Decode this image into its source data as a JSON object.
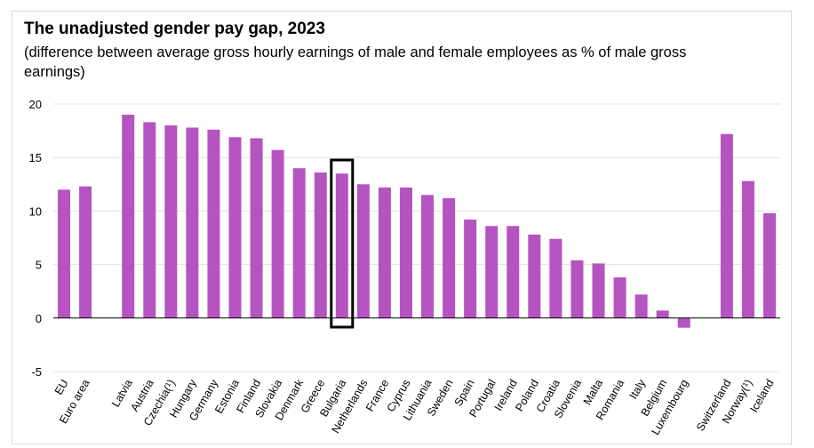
{
  "title": "The unadjusted gender pay gap, 2023",
  "subtitle": "(difference between average gross hourly earnings of male and female employees as % of male gross earnings)",
  "chart_data": {
    "type": "bar",
    "title": "The unadjusted gender pay gap, 2023",
    "subtitle": "(difference between average gross hourly earnings of male and female employees as % of male gross earnings)",
    "xlabel": "",
    "ylabel": "",
    "ylim": [
      -5,
      20
    ],
    "yticks": [
      20,
      15,
      10,
      5,
      0,
      -5
    ],
    "grid": true,
    "bar_color": "#b554c0",
    "highlight_color": "#000000",
    "highlighted_category": "Bulgaria",
    "categories": [
      "EU",
      "Euro area",
      "",
      "Latvia",
      "Austria",
      "Czechia(¹)",
      "Hungary",
      "Germany",
      "Estonia",
      "Finland",
      "Slovakia",
      "Denmark",
      "Greece",
      "Bulgaria",
      "Netherlands",
      "France",
      "Cyprus",
      "Lithuania",
      "Sweden",
      "Spain",
      "Portugal",
      "Ireland",
      "Poland",
      "Croatia",
      "Slovenia",
      "Malta",
      "Romania",
      "Italy",
      "Belgium",
      "Luxembourg",
      "",
      "Switzerland",
      "Norway(¹)",
      "Iceland"
    ],
    "values": [
      12.0,
      12.3,
      null,
      19.0,
      18.3,
      18.0,
      17.8,
      17.6,
      16.9,
      16.8,
      15.7,
      14.0,
      13.6,
      13.5,
      12.5,
      12.2,
      12.2,
      11.5,
      11.2,
      9.2,
      8.6,
      8.6,
      7.8,
      7.4,
      5.4,
      5.1,
      3.8,
      2.2,
      0.7,
      -0.9,
      null,
      17.2,
      12.8,
      9.8
    ]
  }
}
